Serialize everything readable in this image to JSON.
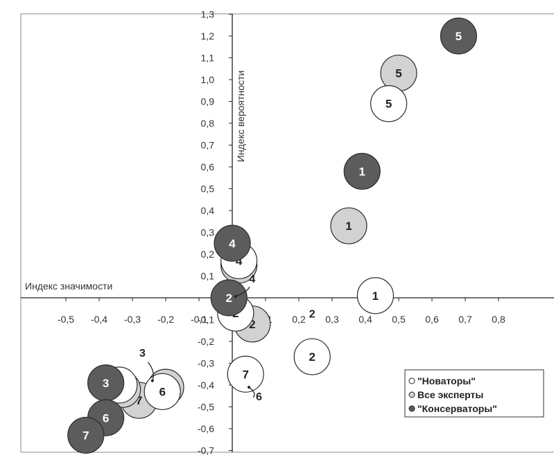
{
  "chart_data": {
    "type": "scatter",
    "xlabel": "Индекс значимости",
    "ylabel": "Индекс вероятности",
    "xlim": [
      -0.5,
      0.8
    ],
    "ylim": [
      -0.7,
      1.3
    ],
    "x_ticks": [
      "-0,5",
      "-0,4",
      "-0,3",
      "-0,2",
      "-0,1",
      "0",
      "0,1",
      "0,2",
      "0,3",
      "0,4",
      "0,5",
      "0,6",
      "0,7",
      "0,8"
    ],
    "y_ticks": [
      "-0,7",
      "-0,6",
      "-0,5",
      "-0,4",
      "-0,3",
      "-0,2",
      "-0,1",
      "0",
      "0,1",
      "0,2",
      "0,3",
      "0,4",
      "0,5",
      "0,6",
      "0,7",
      "0,8",
      "0,9",
      "1,0",
      "1,1",
      "1,2",
      "1,3"
    ],
    "grid": false,
    "legend_position": "bottom-right",
    "series": [
      {
        "name": "\"Новаторы\"",
        "color": "#ffffff",
        "label_color": "#222222",
        "points": [
          {
            "label": "5",
            "x": 0.47,
            "y": 0.89
          },
          {
            "label": "1",
            "x": 0.43,
            "y": 0.01
          },
          {
            "label": "2",
            "x": 0.24,
            "y": -0.27
          },
          {
            "label": "7",
            "x": 0.04,
            "y": -0.35
          },
          {
            "label": "2",
            "x": 0.01,
            "y": -0.07
          },
          {
            "label": "4",
            "x": 0.02,
            "y": 0.17
          },
          {
            "label": "6",
            "x": -0.21,
            "y": -0.43
          },
          {
            "label": "3",
            "x": -0.34,
            "y": -0.4
          }
        ]
      },
      {
        "name": "Все эксперты",
        "color": "#d2d2d2",
        "label_color": "#222222",
        "points": [
          {
            "label": "5",
            "x": 0.5,
            "y": 1.03
          },
          {
            "label": "1",
            "x": 0.35,
            "y": 0.33
          },
          {
            "label": "4",
            "x": 0.02,
            "y": 0.15
          },
          {
            "label": "2",
            "x": 0.06,
            "y": -0.12
          },
          {
            "label": "6",
            "x": -0.2,
            "y": -0.41
          },
          {
            "label": "7",
            "x": -0.28,
            "y": -0.47
          },
          {
            "label": "3",
            "x": -0.33,
            "y": -0.42
          }
        ]
      },
      {
        "name": "\"Консерваторы\"",
        "color": "#5c5c5c",
        "label_color": "#ffffff",
        "points": [
          {
            "label": "5",
            "x": 0.68,
            "y": 1.2
          },
          {
            "label": "1",
            "x": 0.39,
            "y": 0.58
          },
          {
            "label": "4",
            "x": 0.0,
            "y": 0.25
          },
          {
            "label": "2",
            "x": -0.01,
            "y": 0.0
          },
          {
            "label": "3",
            "x": -0.38,
            "y": -0.39
          },
          {
            "label": "6",
            "x": -0.38,
            "y": -0.55
          },
          {
            "label": "7",
            "x": -0.44,
            "y": -0.63
          }
        ]
      }
    ],
    "annotations": [
      {
        "text": "4",
        "x": 0.06,
        "y": 0.07
      },
      {
        "text": "2",
        "x": 0.24,
        "y": -0.09
      },
      {
        "text": "3",
        "x": -0.27,
        "y": -0.27
      },
      {
        "text": "6",
        "x": 0.08,
        "y": -0.47
      }
    ]
  }
}
